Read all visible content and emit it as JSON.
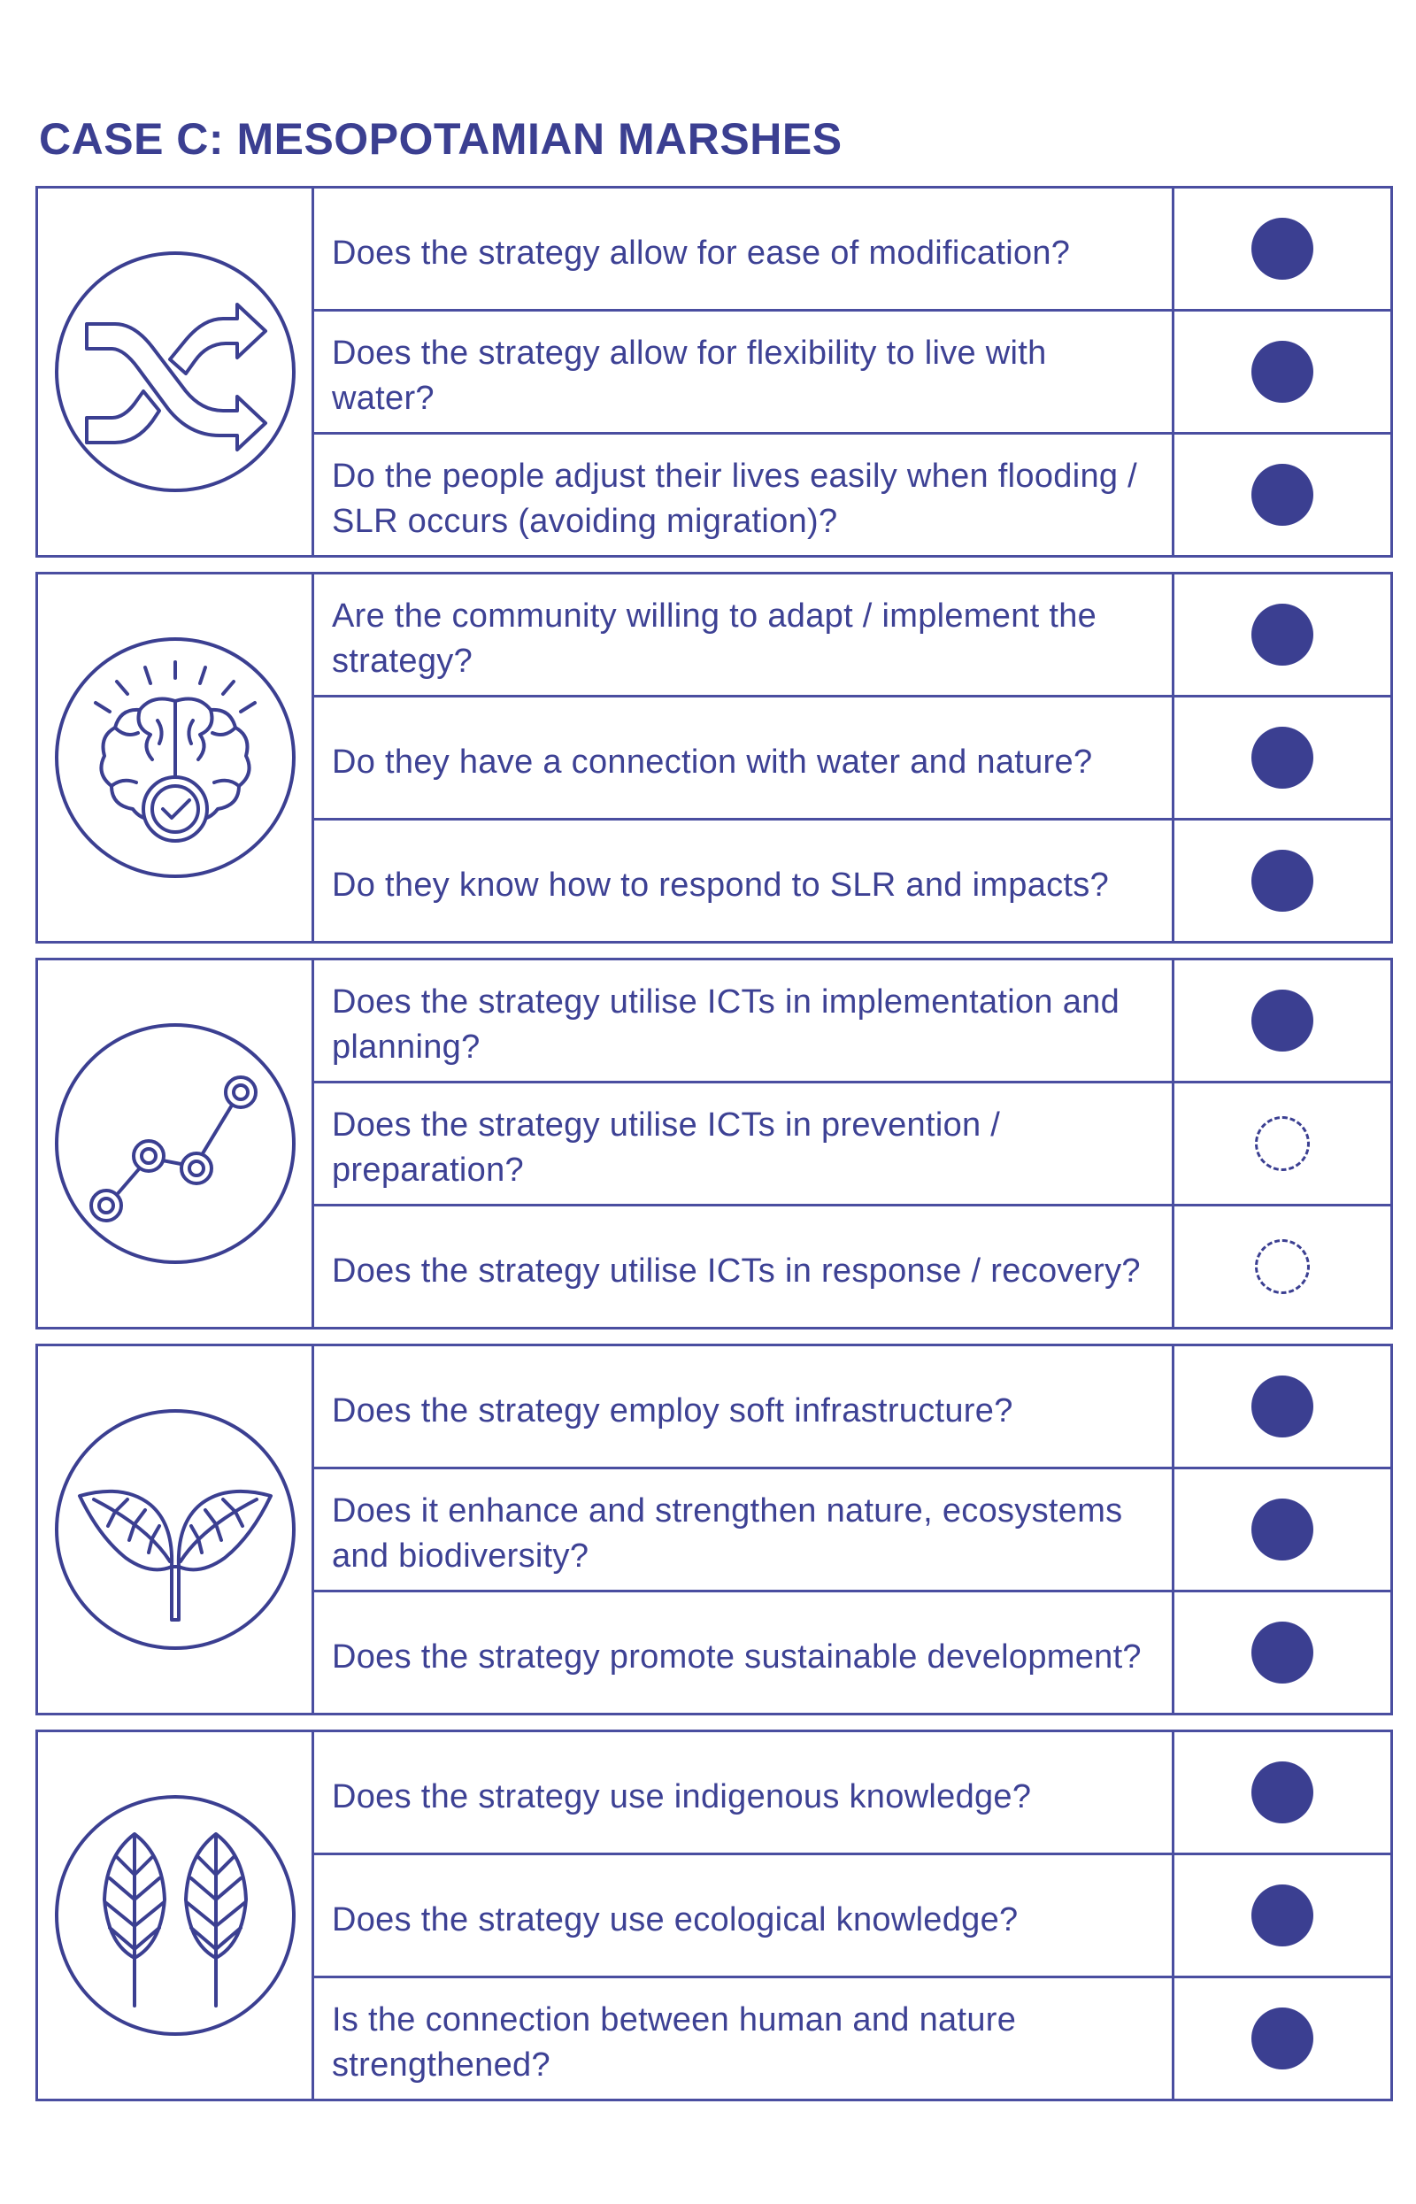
{
  "title": "CASE C: MESOPOTAMIAN MARSHES",
  "colors": {
    "primary": "#3b3f91",
    "border": "#4a4ea0",
    "background": "#ffffff"
  },
  "groups": [
    {
      "icon": "shuffle-arrows-icon",
      "rows": [
        {
          "question": "Does the strategy allow for ease of modification?",
          "status": "filled"
        },
        {
          "question": "Does the strategy allow for flexibility to live with water?",
          "status": "filled"
        },
        {
          "question": "Do the people adjust their lives easily when flooding / SLR occurs (avoiding migration)?",
          "status": "filled"
        }
      ]
    },
    {
      "icon": "brain-check-icon",
      "rows": [
        {
          "question": "Are the community willing to adapt / implement the strategy?",
          "status": "filled"
        },
        {
          "question": "Do they have a connection with water and nature?",
          "status": "filled"
        },
        {
          "question": "Do they know how to respond to SLR and impacts?",
          "status": "filled"
        }
      ]
    },
    {
      "icon": "line-graph-icon",
      "rows": [
        {
          "question": "Does the strategy utilise ICTs in implementation and planning?",
          "status": "filled"
        },
        {
          "question": "Does the strategy utilise ICTs in prevention / preparation?",
          "status": "empty"
        },
        {
          "question": "Does the strategy utilise ICTs in response / recovery?",
          "status": "empty"
        }
      ]
    },
    {
      "icon": "sprout-leaves-icon",
      "rows": [
        {
          "question": "Does the strategy employ soft infrastructure?",
          "status": "filled"
        },
        {
          "question": "Does it enhance and strengthen nature, ecosystems and biodiversity?",
          "status": "filled"
        },
        {
          "question": "Does the strategy promote sustainable development?",
          "status": "filled"
        }
      ]
    },
    {
      "icon": "wheat-icon",
      "rows": [
        {
          "question": "Does the strategy use indigenous knowledge?",
          "status": "filled"
        },
        {
          "question": "Does the strategy use ecological knowledge?",
          "status": "filled"
        },
        {
          "question": "Is the connection between human and nature strengthened?",
          "status": "filled"
        }
      ]
    }
  ]
}
